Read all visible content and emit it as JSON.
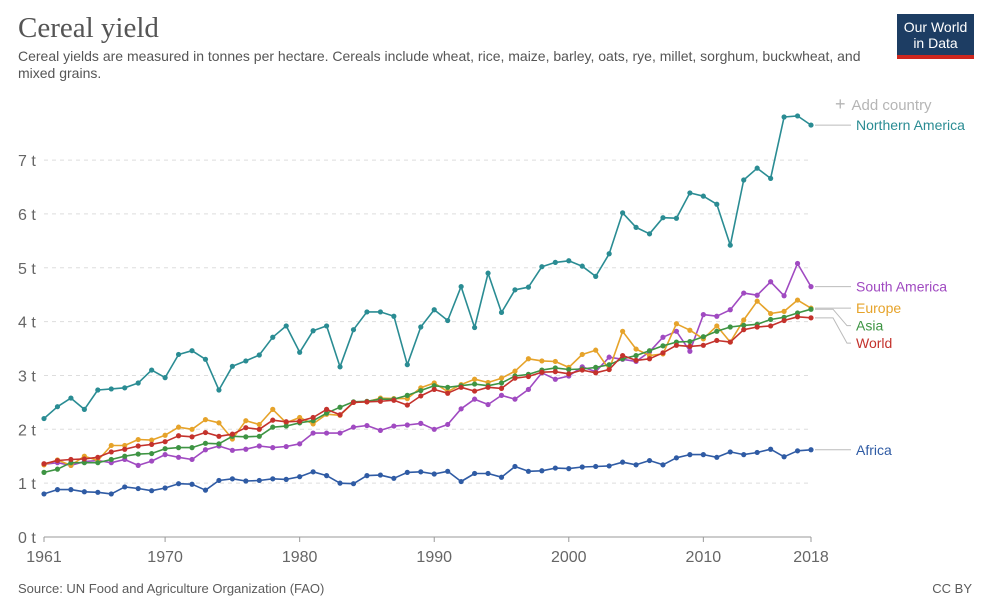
{
  "header": {
    "title": "Cereal yield",
    "subtitle": "Cereal yields are measured in tonnes per hectare. Cereals include wheat, rice, maize, barley, oats, rye, millet, sorghum, buckwheat, and mixed grains."
  },
  "logo": {
    "line1": "Our World",
    "line2": "in Data",
    "bg_color": "#1d3d63",
    "accent_color": "#ce261e"
  },
  "controls": {
    "add_country_label": "Add country",
    "add_icon": "plus-icon"
  },
  "footer": {
    "source": "Source: UN Food and Agriculture Organization (FAO)",
    "license": "CC BY"
  },
  "chart_data": {
    "type": "line",
    "title": "Cereal yield",
    "xlabel": "",
    "ylabel": "",
    "xlim": [
      1961,
      2018
    ],
    "ylim": [
      0,
      7.8
    ],
    "x_ticks": [
      1961,
      1970,
      1980,
      1990,
      2000,
      2010,
      2018
    ],
    "y_ticks": [
      0,
      1,
      2,
      3,
      4,
      5,
      6,
      7
    ],
    "y_tick_labels": [
      "0 t",
      "1 t",
      "2 t",
      "3 t",
      "4 t",
      "5 t",
      "6 t",
      "7 t"
    ],
    "grid": "horizontal dashed",
    "legend": "right, end-of-line labels",
    "x": [
      1961,
      1962,
      1963,
      1964,
      1965,
      1966,
      1967,
      1968,
      1969,
      1970,
      1971,
      1972,
      1973,
      1974,
      1975,
      1976,
      1977,
      1978,
      1979,
      1980,
      1981,
      1982,
      1983,
      1984,
      1985,
      1986,
      1987,
      1988,
      1989,
      1990,
      1991,
      1992,
      1993,
      1994,
      1995,
      1996,
      1997,
      1998,
      1999,
      2000,
      2001,
      2002,
      2003,
      2004,
      2005,
      2006,
      2007,
      2008,
      2009,
      2010,
      2011,
      2012,
      2013,
      2014,
      2015,
      2016,
      2017,
      2018
    ],
    "series": [
      {
        "name": "Northern America",
        "color": "#2a8c93",
        "values": [
          2.2,
          2.42,
          2.58,
          2.37,
          2.73,
          2.75,
          2.77,
          2.86,
          3.1,
          2.96,
          3.39,
          3.46,
          3.3,
          2.73,
          3.17,
          3.27,
          3.38,
          3.71,
          3.92,
          3.43,
          3.83,
          3.92,
          3.16,
          3.85,
          4.18,
          4.18,
          4.1,
          3.2,
          3.9,
          4.22,
          4.02,
          4.65,
          3.89,
          4.9,
          4.17,
          4.59,
          4.64,
          5.02,
          5.1,
          5.13,
          5.03,
          4.84,
          5.26,
          6.02,
          5.75,
          5.63,
          5.93,
          5.92,
          6.39,
          6.33,
          6.18,
          5.42,
          6.63,
          6.85,
          6.66,
          7.8,
          7.82,
          7.65
        ]
      },
      {
        "name": "South America",
        "color": "#a04ac1",
        "values": [
          1.35,
          1.38,
          1.33,
          1.4,
          1.42,
          1.38,
          1.44,
          1.33,
          1.41,
          1.53,
          1.48,
          1.44,
          1.62,
          1.69,
          1.61,
          1.63,
          1.69,
          1.66,
          1.68,
          1.73,
          1.93,
          1.93,
          1.93,
          2.04,
          2.07,
          1.98,
          2.06,
          2.08,
          2.11,
          2.0,
          2.09,
          2.38,
          2.56,
          2.46,
          2.63,
          2.56,
          2.74,
          3.05,
          2.93,
          2.99,
          3.16,
          3.07,
          3.34,
          3.3,
          3.26,
          3.44,
          3.71,
          3.82,
          3.45,
          4.13,
          4.1,
          4.22,
          4.53,
          4.49,
          4.74,
          4.48,
          5.08,
          4.65
        ]
      },
      {
        "name": "Europe",
        "color": "#e6a32a",
        "values": [
          1.34,
          1.43,
          1.33,
          1.5,
          1.42,
          1.7,
          1.7,
          1.81,
          1.8,
          1.89,
          2.04,
          2.0,
          2.18,
          2.12,
          1.82,
          2.16,
          2.09,
          2.37,
          2.12,
          2.22,
          2.1,
          2.28,
          2.26,
          2.5,
          2.51,
          2.58,
          2.57,
          2.57,
          2.77,
          2.86,
          2.7,
          2.83,
          2.93,
          2.87,
          2.95,
          3.08,
          3.31,
          3.27,
          3.26,
          3.15,
          3.39,
          3.47,
          3.11,
          3.82,
          3.49,
          3.37,
          3.4,
          3.96,
          3.84,
          3.68,
          3.92,
          3.62,
          4.03,
          4.38,
          4.15,
          4.19,
          4.4,
          4.25
        ]
      },
      {
        "name": "Asia",
        "color": "#3e9443",
        "values": [
          1.2,
          1.26,
          1.38,
          1.38,
          1.38,
          1.44,
          1.5,
          1.54,
          1.55,
          1.64,
          1.66,
          1.66,
          1.74,
          1.73,
          1.87,
          1.86,
          1.87,
          2.04,
          2.06,
          2.12,
          2.16,
          2.3,
          2.41,
          2.51,
          2.52,
          2.56,
          2.56,
          2.63,
          2.72,
          2.81,
          2.78,
          2.81,
          2.84,
          2.81,
          2.86,
          2.99,
          3.02,
          3.1,
          3.14,
          3.11,
          3.12,
          3.15,
          3.2,
          3.31,
          3.37,
          3.46,
          3.55,
          3.62,
          3.63,
          3.72,
          3.82,
          3.9,
          3.93,
          3.95,
          4.04,
          4.08,
          4.16,
          4.23
        ]
      },
      {
        "name": "World",
        "color": "#c4322c",
        "values": [
          1.36,
          1.42,
          1.44,
          1.45,
          1.48,
          1.58,
          1.63,
          1.69,
          1.72,
          1.77,
          1.88,
          1.86,
          1.94,
          1.87,
          1.91,
          2.03,
          2.0,
          2.17,
          2.14,
          2.15,
          2.22,
          2.37,
          2.27,
          2.5,
          2.51,
          2.52,
          2.54,
          2.45,
          2.62,
          2.74,
          2.67,
          2.78,
          2.71,
          2.78,
          2.76,
          2.95,
          2.98,
          3.06,
          3.07,
          3.03,
          3.1,
          3.05,
          3.11,
          3.37,
          3.28,
          3.31,
          3.42,
          3.56,
          3.54,
          3.56,
          3.65,
          3.62,
          3.85,
          3.9,
          3.92,
          4.02,
          4.09,
          4.07
        ]
      },
      {
        "name": "Africa",
        "color": "#2f5ba4",
        "values": [
          0.8,
          0.88,
          0.88,
          0.84,
          0.83,
          0.8,
          0.93,
          0.9,
          0.86,
          0.91,
          0.99,
          0.98,
          0.87,
          1.05,
          1.08,
          1.04,
          1.05,
          1.08,
          1.07,
          1.12,
          1.21,
          1.14,
          1.0,
          0.99,
          1.14,
          1.15,
          1.09,
          1.2,
          1.21,
          1.17,
          1.22,
          1.03,
          1.18,
          1.18,
          1.11,
          1.31,
          1.22,
          1.23,
          1.28,
          1.27,
          1.3,
          1.31,
          1.32,
          1.39,
          1.34,
          1.42,
          1.34,
          1.47,
          1.53,
          1.53,
          1.48,
          1.58,
          1.53,
          1.57,
          1.63,
          1.49,
          1.6,
          1.62
        ]
      }
    ]
  }
}
